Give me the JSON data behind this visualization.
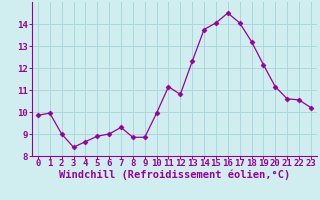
{
  "x": [
    0,
    1,
    2,
    3,
    4,
    5,
    6,
    7,
    8,
    9,
    10,
    11,
    12,
    13,
    14,
    15,
    16,
    17,
    18,
    19,
    20,
    21,
    22,
    23
  ],
  "y": [
    9.85,
    9.95,
    9.0,
    8.4,
    8.65,
    8.9,
    9.0,
    9.3,
    8.85,
    8.85,
    9.95,
    11.15,
    10.8,
    12.3,
    13.75,
    14.05,
    14.5,
    14.05,
    13.2,
    12.15,
    11.15,
    10.6,
    10.55,
    10.2
  ],
  "line_color": "#990099",
  "marker_color": "#990099",
  "bg_color": "#d0eef0",
  "grid_color": "#aad8dc",
  "xlabel": "Windchill (Refroidissement éolien,°C)",
  "xlabel_color": "#990099",
  "tick_color": "#990099",
  "ylim": [
    8.0,
    15.0
  ],
  "xlim_min": -0.5,
  "xlim_max": 23.5,
  "yticks": [
    8,
    9,
    10,
    11,
    12,
    13,
    14
  ],
  "xticks": [
    0,
    1,
    2,
    3,
    4,
    5,
    6,
    7,
    8,
    9,
    10,
    11,
    12,
    13,
    14,
    15,
    16,
    17,
    18,
    19,
    20,
    21,
    22,
    23
  ],
  "tick_fontsize": 6.5,
  "xlabel_fontsize": 7.5
}
